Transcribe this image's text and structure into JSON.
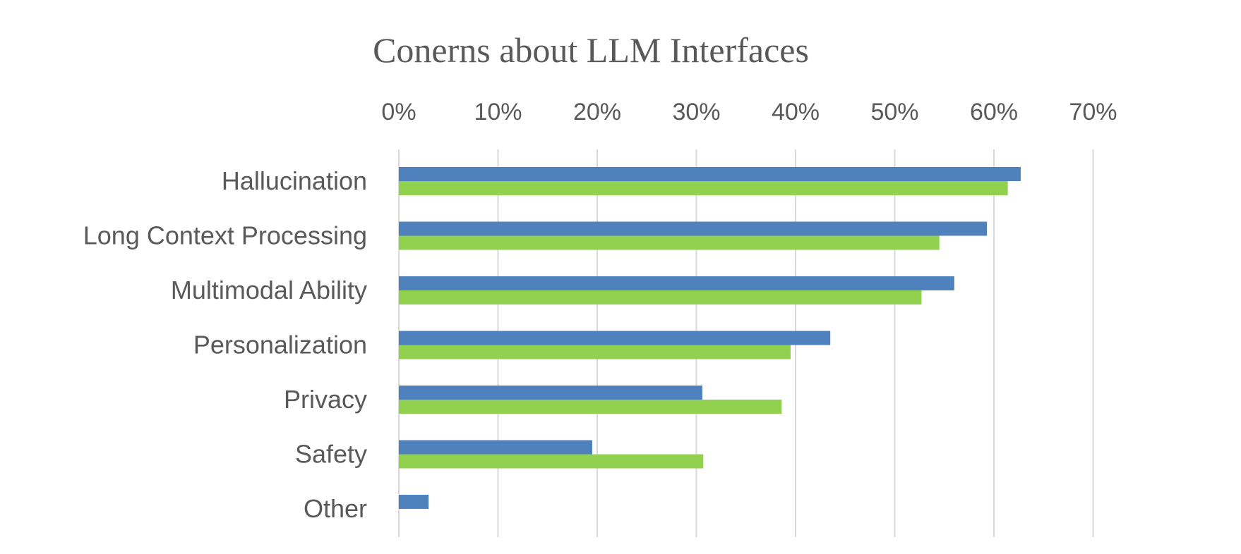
{
  "chart_data": {
    "type": "bar",
    "orientation": "horizontal",
    "title": "Conerns about LLM Interfaces",
    "xlabel": "",
    "ylabel": "",
    "categories": [
      "Hallucination",
      "Long Context Processing",
      "Multimodal Ability",
      "Personalization",
      "Privacy",
      "Safety",
      "Other"
    ],
    "x_ticks": [
      "0%",
      "10%",
      "20%",
      "30%",
      "40%",
      "50%",
      "60%",
      "70%"
    ],
    "xlim": [
      0,
      70
    ],
    "x_axis_position": "top",
    "grid": true,
    "legend": "none",
    "series": [
      {
        "color": "#4f81bd",
        "values": [
          62.7,
          59.3,
          56.0,
          43.5,
          30.6,
          19.5,
          3.0
        ]
      },
      {
        "color": "#92d050",
        "values": [
          61.4,
          54.5,
          52.7,
          39.5,
          38.6,
          30.7,
          0
        ]
      }
    ]
  }
}
